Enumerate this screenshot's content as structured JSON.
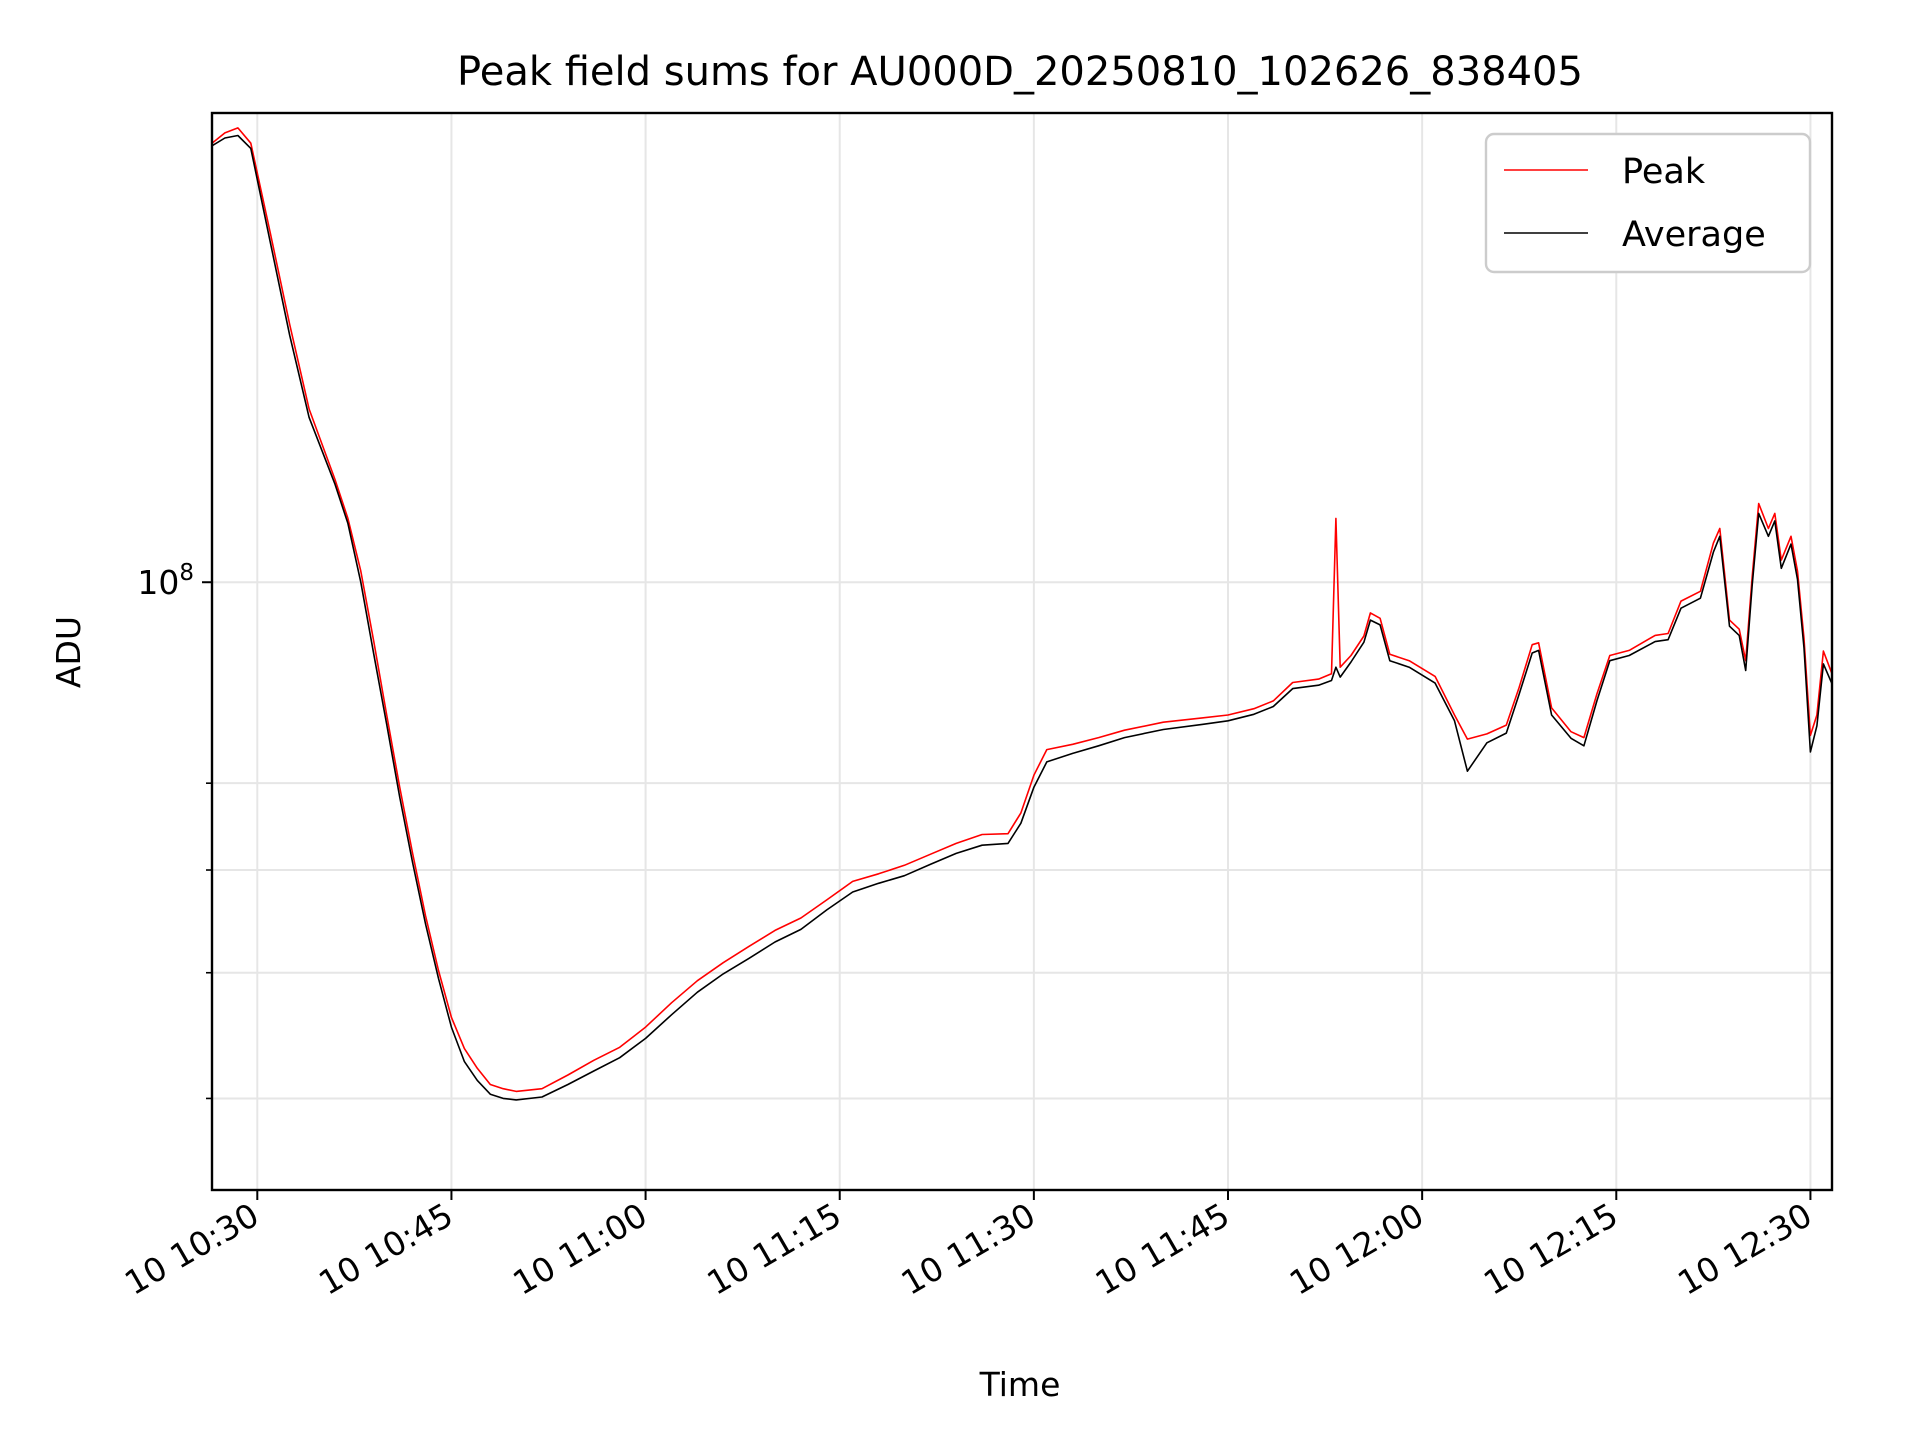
{
  "chart_data": {
    "type": "line",
    "title": "Peak field sums for AU000D_20250810_102626_838405",
    "xlabel": "Time",
    "ylabel": "ADU",
    "yscale": "log",
    "ylim": [
      34000000,
      230000000
    ],
    "xlim": [
      "10:26:30",
      "12:31:40"
    ],
    "grid": true,
    "legend_position": "top-right",
    "xticks": [
      {
        "label": "10 10:30",
        "value": "10:30"
      },
      {
        "label": "10 10:45",
        "value": "10:45"
      },
      {
        "label": "10 11:00",
        "value": "11:00"
      },
      {
        "label": "10 11:15",
        "value": "11:15"
      },
      {
        "label": "10 11:30",
        "value": "11:30"
      },
      {
        "label": "10 11:45",
        "value": "11:45"
      },
      {
        "label": "10 12:00",
        "value": "12:00"
      },
      {
        "label": "10 12:15",
        "value": "12:15"
      },
      {
        "label": "10 12:30",
        "value": "12:30"
      }
    ],
    "yticks_major": [
      {
        "label": "10",
        "exponent": "8",
        "value": 100000000
      }
    ],
    "yticks_minor": [
      40000000,
      50000000,
      60000000,
      70000000
    ],
    "series": [
      {
        "name": "Peak",
        "color": "#ff0000",
        "points": [
          [
            "10:26:30",
            218000000
          ],
          [
            "10:27:30",
            222000000
          ],
          [
            "10:28:30",
            224000000
          ],
          [
            "10:29:30",
            218000000
          ],
          [
            "10:31:00",
            186000000
          ],
          [
            "10:32:30",
            158000000
          ],
          [
            "10:34:00",
            136000000
          ],
          [
            "10:36:00",
            120000000
          ],
          [
            "10:37:00",
            112000000
          ],
          [
            "10:38:00",
            102000000
          ],
          [
            "10:39:00",
            90000000
          ],
          [
            "10:40:00",
            79000000
          ],
          [
            "10:41:00",
            69500000
          ],
          [
            "10:42:00",
            61800000
          ],
          [
            "10:43:00",
            55300000
          ],
          [
            "10:44:00",
            50200000
          ],
          [
            "10:45:00",
            46200000
          ],
          [
            "10:46:00",
            43700000
          ],
          [
            "10:47:00",
            42200000
          ],
          [
            "10:48:00",
            41000000
          ],
          [
            "10:49:00",
            40700000
          ],
          [
            "10:50:00",
            40500000
          ],
          [
            "10:52:00",
            40700000
          ],
          [
            "10:54:00",
            41700000
          ],
          [
            "10:56:00",
            42800000
          ],
          [
            "10:58:00",
            43800000
          ],
          [
            "11:00:00",
            45400000
          ],
          [
            "11:02:00",
            47400000
          ],
          [
            "11:04:00",
            49300000
          ],
          [
            "11:06:00",
            50900000
          ],
          [
            "11:08:00",
            52400000
          ],
          [
            "11:10:00",
            53900000
          ],
          [
            "11:12:00",
            55100000
          ],
          [
            "11:14:00",
            56900000
          ],
          [
            "11:16:00",
            58800000
          ],
          [
            "11:18:00",
            59600000
          ],
          [
            "11:20:00",
            60500000
          ],
          [
            "11:22:00",
            61700000
          ],
          [
            "11:24:00",
            62900000
          ],
          [
            "11:26:00",
            63900000
          ],
          [
            "11:28:00",
            64000000
          ],
          [
            "11:29:00",
            66400000
          ],
          [
            "11:30:00",
            71000000
          ],
          [
            "11:31:00",
            74300000
          ],
          [
            "11:33:00",
            75000000
          ],
          [
            "11:35:00",
            75900000
          ],
          [
            "11:37:00",
            76900000
          ],
          [
            "11:40:00",
            78000000
          ],
          [
            "11:43:00",
            78600000
          ],
          [
            "11:45:00",
            79000000
          ],
          [
            "11:47:00",
            79900000
          ],
          [
            "11:48:30",
            81000000
          ],
          [
            "11:50:00",
            83700000
          ],
          [
            "11:52:00",
            84200000
          ],
          [
            "11:53:00",
            85000000
          ],
          [
            "11:53:20",
            112000000
          ],
          [
            "11:53:40",
            86000000
          ],
          [
            "11:54:30",
            87800000
          ],
          [
            "11:55:30",
            90900000
          ],
          [
            "11:56:00",
            94700000
          ],
          [
            "11:56:45",
            93800000
          ],
          [
            "11:57:30",
            88000000
          ],
          [
            "11:59:00",
            87000000
          ],
          [
            "12:01:00",
            84600000
          ],
          [
            "12:02:30",
            79000000
          ],
          [
            "12:03:30",
            75700000
          ],
          [
            "12:05:00",
            76400000
          ],
          [
            "12:06:30",
            77600000
          ],
          [
            "12:07:30",
            83000000
          ],
          [
            "12:08:30",
            89500000
          ],
          [
            "12:09:00",
            89800000
          ],
          [
            "12:10:00",
            80000000
          ],
          [
            "12:11:30",
            76700000
          ],
          [
            "12:12:30",
            75900000
          ],
          [
            "12:13:30",
            82000000
          ],
          [
            "12:14:30",
            87800000
          ],
          [
            "12:16:00",
            88600000
          ],
          [
            "12:18:00",
            91000000
          ],
          [
            "12:19:00",
            91300000
          ],
          [
            "12:20:00",
            96700000
          ],
          [
            "12:21:30",
            98400000
          ],
          [
            "12:22:30",
            107200000
          ],
          [
            "12:23:00",
            110000000
          ],
          [
            "12:23:45",
            93500000
          ],
          [
            "12:24:30",
            92000000
          ],
          [
            "12:25:00",
            87000000
          ],
          [
            "12:25:30",
            101000000
          ],
          [
            "12:26:00",
            115000000
          ],
          [
            "12:26:45",
            110000000
          ],
          [
            "12:27:15",
            113000000
          ],
          [
            "12:27:45",
            104000000
          ],
          [
            "12:28:30",
            108500000
          ],
          [
            "12:29:00",
            102000000
          ],
          [
            "12:29:30",
            90500000
          ],
          [
            "12:30:00",
            76200000
          ],
          [
            "12:30:30",
            79000000
          ],
          [
            "12:31:00",
            88500000
          ],
          [
            "12:31:40",
            85000000
          ]
        ]
      },
      {
        "name": "Average",
        "color": "#000000",
        "points": [
          [
            "10:26:30",
            217000000
          ],
          [
            "10:27:30",
            220000000
          ],
          [
            "10:28:30",
            221000000
          ],
          [
            "10:29:30",
            216000000
          ],
          [
            "10:31:00",
            183000000
          ],
          [
            "10:32:30",
            155000000
          ],
          [
            "10:34:00",
            134000000
          ],
          [
            "10:36:00",
            119000000
          ],
          [
            "10:37:00",
            111000000
          ],
          [
            "10:38:00",
            100000000
          ],
          [
            "10:39:00",
            88000000
          ],
          [
            "10:40:00",
            77700000
          ],
          [
            "10:41:00",
            68300000
          ],
          [
            "10:42:00",
            60800000
          ],
          [
            "10:43:00",
            54500000
          ],
          [
            "10:44:00",
            49500000
          ],
          [
            "10:45:00",
            45400000
          ],
          [
            "10:46:00",
            42700000
          ],
          [
            "10:47:00",
            41300000
          ],
          [
            "10:48:00",
            40300000
          ],
          [
            "10:49:00",
            40000000
          ],
          [
            "10:50:00",
            39900000
          ],
          [
            "10:52:00",
            40100000
          ],
          [
            "10:54:00",
            41000000
          ],
          [
            "10:56:00",
            42000000
          ],
          [
            "10:58:00",
            43000000
          ],
          [
            "11:00:00",
            44500000
          ],
          [
            "11:02:00",
            46400000
          ],
          [
            "11:04:00",
            48300000
          ],
          [
            "11:06:00",
            49900000
          ],
          [
            "11:08:00",
            51300000
          ],
          [
            "11:10:00",
            52800000
          ],
          [
            "11:12:00",
            54000000
          ],
          [
            "11:14:00",
            55900000
          ],
          [
            "11:16:00",
            57700000
          ],
          [
            "11:18:00",
            58600000
          ],
          [
            "11:20:00",
            59400000
          ],
          [
            "11:22:00",
            60600000
          ],
          [
            "11:24:00",
            61800000
          ],
          [
            "11:26:00",
            62700000
          ],
          [
            "11:28:00",
            62900000
          ],
          [
            "11:29:00",
            65200000
          ],
          [
            "11:30:00",
            69500000
          ],
          [
            "11:31:00",
            72700000
          ],
          [
            "11:33:00",
            73800000
          ],
          [
            "11:35:00",
            74800000
          ],
          [
            "11:37:00",
            75900000
          ],
          [
            "11:40:00",
            77000000
          ],
          [
            "11:43:00",
            77700000
          ],
          [
            "11:45:00",
            78200000
          ],
          [
            "11:47:00",
            79100000
          ],
          [
            "11:48:30",
            80200000
          ],
          [
            "11:50:00",
            82800000
          ],
          [
            "11:52:00",
            83300000
          ],
          [
            "11:53:00",
            84000000
          ],
          [
            "11:53:20",
            86000000
          ],
          [
            "11:53:40",
            84500000
          ],
          [
            "11:54:30",
            86800000
          ],
          [
            "11:55:30",
            89900000
          ],
          [
            "11:56:00",
            93500000
          ],
          [
            "11:56:45",
            92700000
          ],
          [
            "11:57:30",
            87000000
          ],
          [
            "11:59:00",
            86000000
          ],
          [
            "12:01:00",
            83600000
          ],
          [
            "12:02:30",
            78200000
          ],
          [
            "12:03:30",
            71500000
          ],
          [
            "12:05:00",
            75200000
          ],
          [
            "12:06:30",
            76500000
          ],
          [
            "12:07:30",
            82000000
          ],
          [
            "12:08:30",
            88200000
          ],
          [
            "12:09:00",
            88600000
          ],
          [
            "12:10:00",
            79000000
          ],
          [
            "12:11:30",
            75800000
          ],
          [
            "12:12:30",
            74800000
          ],
          [
            "12:13:30",
            81000000
          ],
          [
            "12:14:30",
            87000000
          ],
          [
            "12:16:00",
            87800000
          ],
          [
            "12:18:00",
            90000000
          ],
          [
            "12:19:00",
            90300000
          ],
          [
            "12:20:00",
            95500000
          ],
          [
            "12:21:30",
            97200000
          ],
          [
            "12:22:30",
            105500000
          ],
          [
            "12:23:00",
            108500000
          ],
          [
            "12:23:45",
            92500000
          ],
          [
            "12:24:30",
            91000000
          ],
          [
            "12:25:00",
            85500000
          ],
          [
            "12:25:30",
            99500000
          ],
          [
            "12:26:00",
            113000000
          ],
          [
            "12:26:45",
            108500000
          ],
          [
            "12:27:15",
            111500000
          ],
          [
            "12:27:45",
            102500000
          ],
          [
            "12:28:30",
            107000000
          ],
          [
            "12:29:00",
            100500000
          ],
          [
            "12:29:30",
            89000000
          ],
          [
            "12:30:00",
            74000000
          ],
          [
            "12:30:30",
            77500000
          ],
          [
            "12:31:00",
            86500000
          ],
          [
            "12:31:40",
            83500000
          ]
        ]
      }
    ]
  }
}
